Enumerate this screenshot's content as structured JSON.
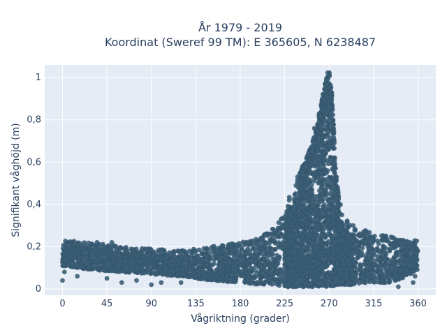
{
  "chart_data": {
    "type": "scatter",
    "title_line1": "År 1979 - 2019",
    "title_line2": "Koordinat (Sweref 99 TM): E 365605, N 6238487",
    "xlabel": "Vågriktning (grader)",
    "ylabel": "Signifikant våghöjd (m)",
    "xlim": [
      -18,
      378
    ],
    "ylim": [
      -0.03,
      1.06
    ],
    "xticks": [
      0,
      45,
      90,
      135,
      180,
      225,
      270,
      315,
      360
    ],
    "yticks": [
      0,
      0.2,
      0.4,
      0.6,
      0.8,
      1
    ],
    "ytick_labels": [
      "0",
      "0,2",
      "0,4",
      "0,6",
      "0,8",
      "1"
    ],
    "grid": true,
    "plot_background": "#e5ecf6",
    "marker_color": "#34576e",
    "envelope": {
      "x": [
        0,
        30,
        60,
        90,
        120,
        150,
        180,
        200,
        215,
        225,
        235,
        245,
        252,
        258,
        262,
        265,
        268,
        270,
        272,
        274,
        276,
        280,
        285,
        295,
        310,
        330,
        345,
        360
      ],
      "y_min": [
        0.11,
        0.09,
        0.08,
        0.07,
        0.06,
        0.04,
        0.03,
        0.02,
        0.02,
        0.01,
        0.01,
        0.01,
        0.01,
        0.01,
        0.01,
        0.01,
        0.01,
        0.01,
        0.01,
        0.01,
        0.02,
        0.02,
        0.02,
        0.02,
        0.03,
        0.03,
        0.05,
        0.09
      ],
      "y_max": [
        0.23,
        0.22,
        0.2,
        0.19,
        0.18,
        0.2,
        0.22,
        0.24,
        0.3,
        0.38,
        0.5,
        0.6,
        0.68,
        0.78,
        0.88,
        0.96,
        1.02,
        1.03,
        0.98,
        0.85,
        0.6,
        0.42,
        0.35,
        0.3,
        0.27,
        0.25,
        0.23,
        0.23
      ],
      "dense_max": [
        0.2,
        0.19,
        0.17,
        0.16,
        0.15,
        0.17,
        0.2,
        0.22,
        0.26,
        0.32,
        0.42,
        0.5,
        0.58,
        0.66,
        0.74,
        0.82,
        0.88,
        0.9,
        0.86,
        0.72,
        0.5,
        0.34,
        0.28,
        0.25,
        0.23,
        0.22,
        0.2,
        0.2
      ]
    },
    "outliers": [
      {
        "x": 0,
        "y": 0.04
      },
      {
        "x": 2,
        "y": 0.08
      },
      {
        "x": 15,
        "y": 0.06
      },
      {
        "x": 45,
        "y": 0.05
      },
      {
        "x": 60,
        "y": 0.03
      },
      {
        "x": 75,
        "y": 0.04
      },
      {
        "x": 90,
        "y": 0.02
      },
      {
        "x": 100,
        "y": 0.03
      },
      {
        "x": 120,
        "y": 0.03
      },
      {
        "x": 340,
        "y": 0.01
      },
      {
        "x": 355,
        "y": 0.03
      },
      {
        "x": 357,
        "y": 0.06
      },
      {
        "x": 345,
        "y": 0.1
      },
      {
        "x": 325,
        "y": 0.2
      },
      {
        "x": 338,
        "y": 0.17
      },
      {
        "x": 243,
        "y": 0.58
      },
      {
        "x": 238,
        "y": 0.53
      },
      {
        "x": 248,
        "y": 0.62
      },
      {
        "x": 260,
        "y": 0.83
      },
      {
        "x": 263,
        "y": 0.86
      },
      {
        "x": 255,
        "y": 0.76
      },
      {
        "x": 50,
        "y": 0.22
      },
      {
        "x": 10,
        "y": 0.22
      },
      {
        "x": 35,
        "y": 0.22
      }
    ]
  }
}
